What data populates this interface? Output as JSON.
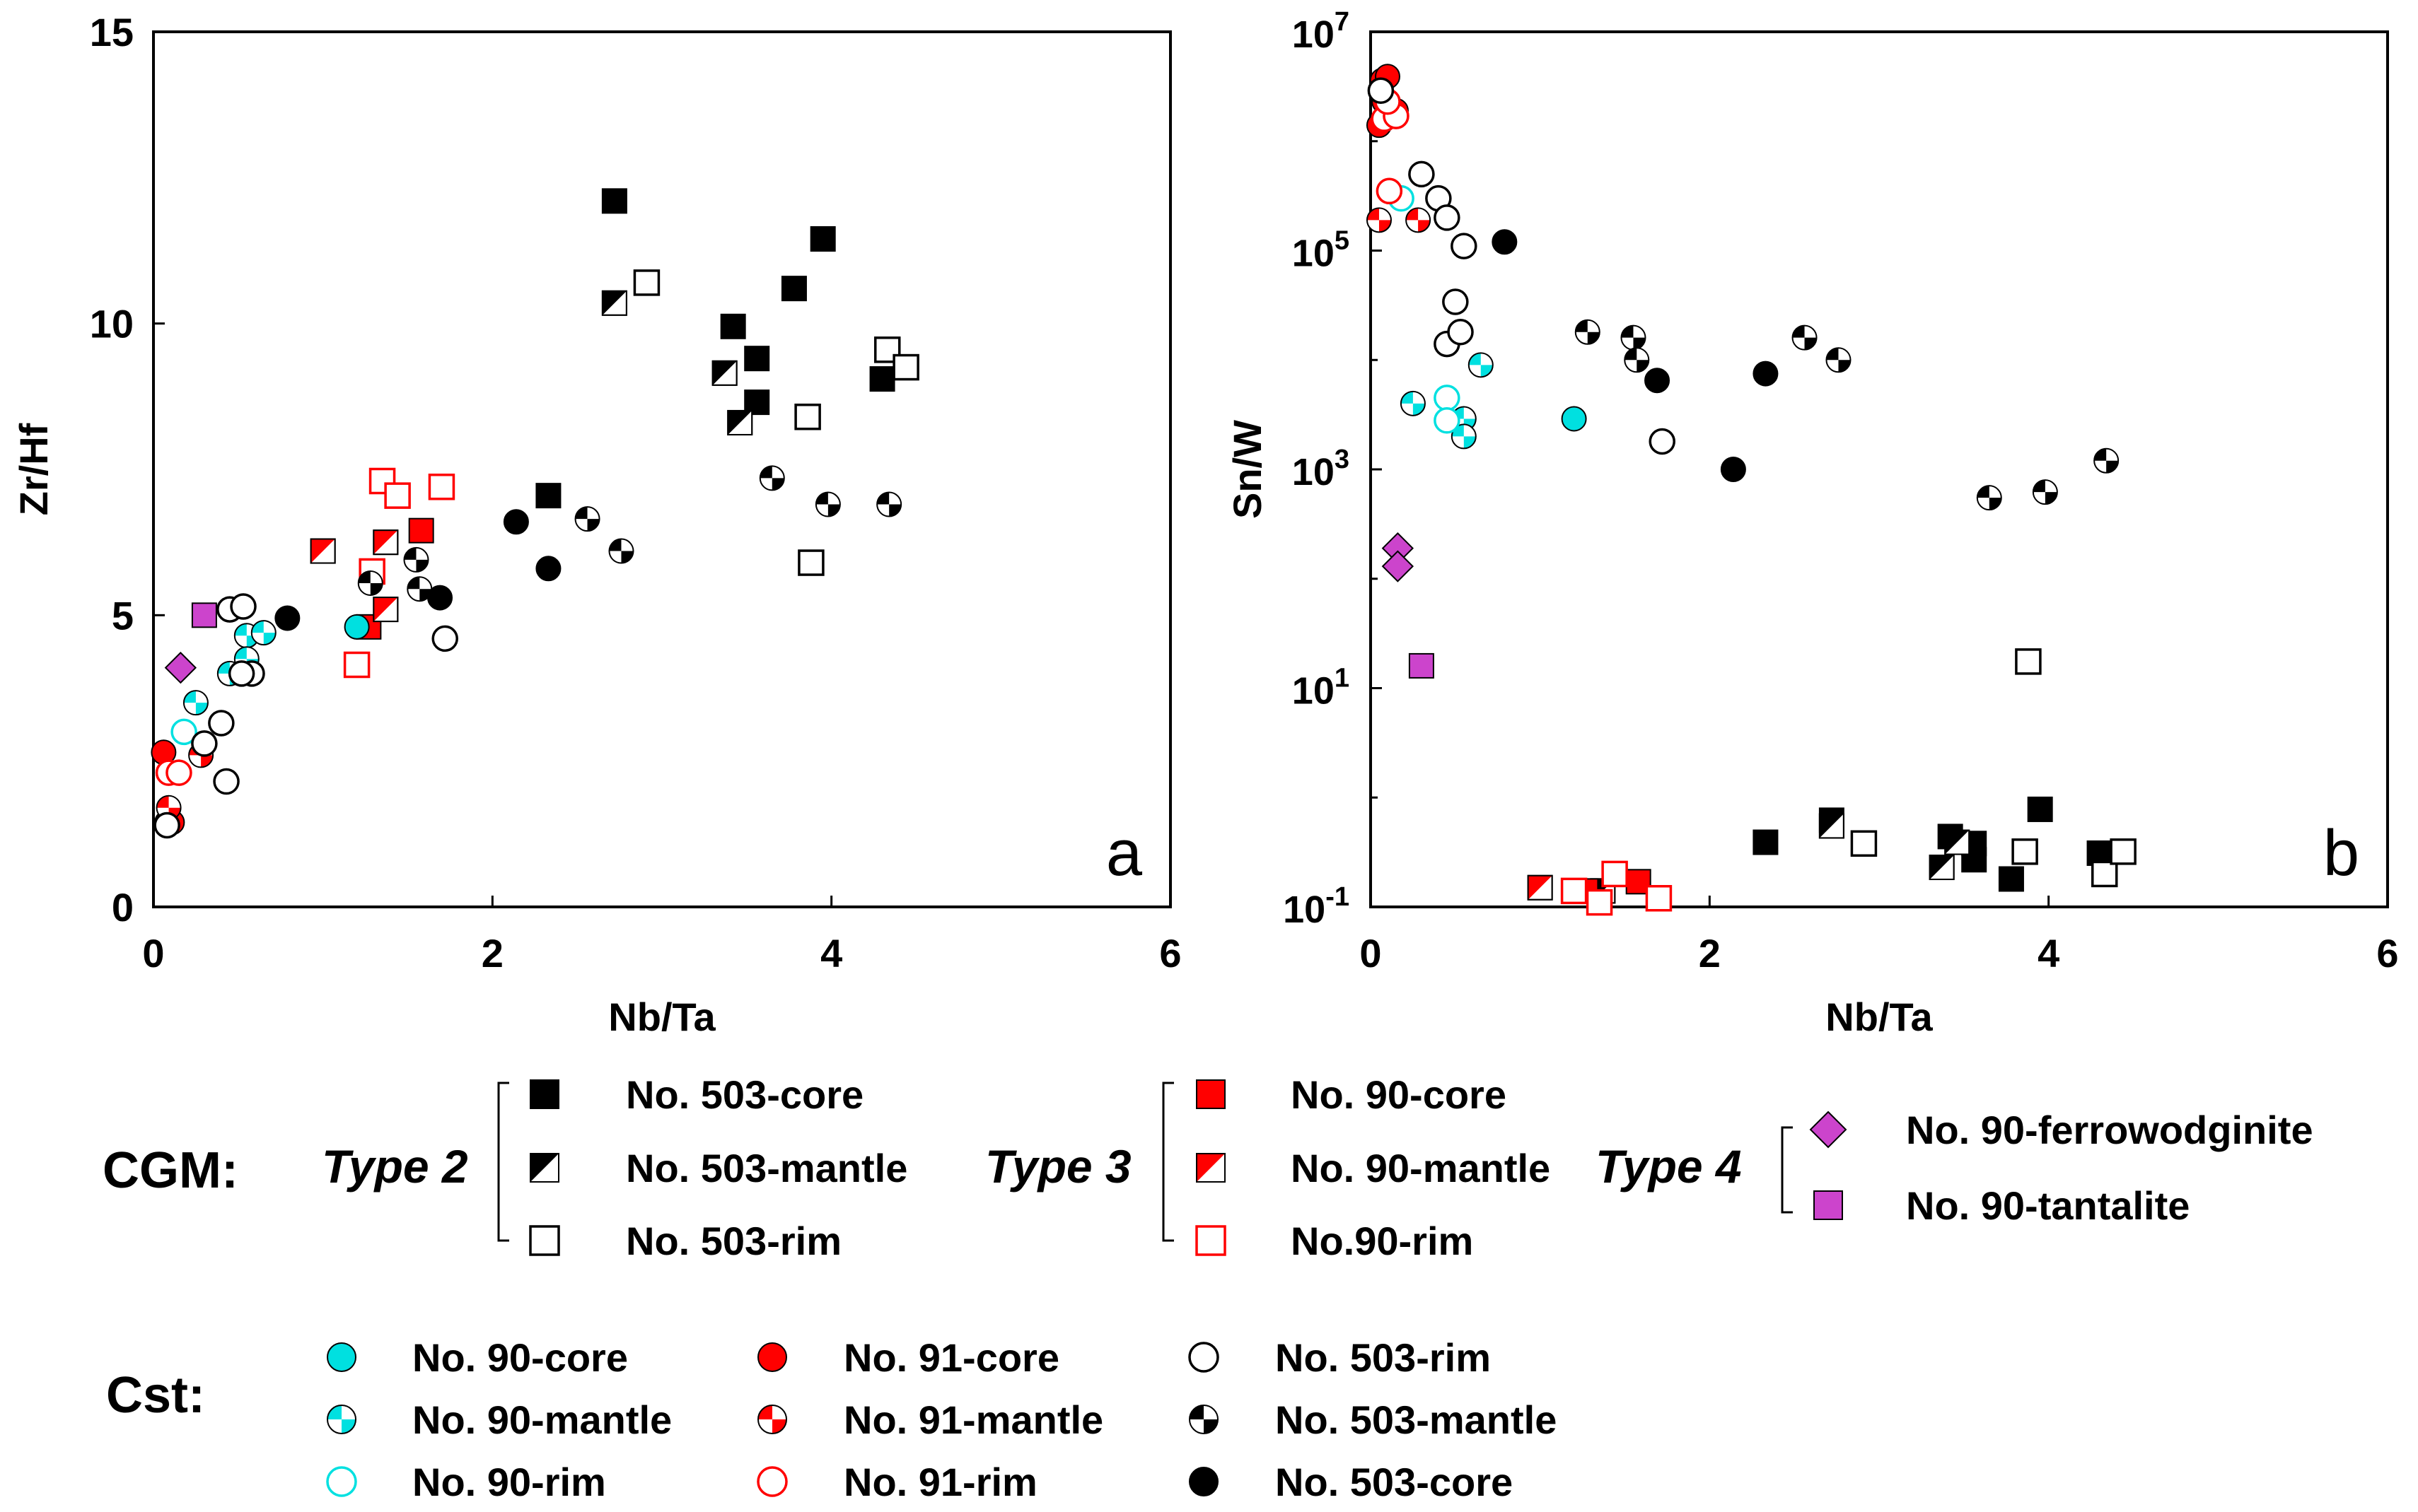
{
  "colors": {
    "black": "#000000",
    "red": "#ff0000",
    "cyan": "#00e0e0",
    "magenta": "#cc44cc"
  },
  "chart_data": [
    {
      "panel": "a",
      "type": "scatter",
      "xlabel": "Nb/Ta",
      "ylabel": "Zr/Hf",
      "xlim": [
        0,
        6
      ],
      "ylim": [
        0,
        15
      ],
      "xticks": [
        "0",
        "2",
        "4",
        "6"
      ],
      "yticks": [
        "0",
        "5",
        "10",
        "15"
      ],
      "series": [
        {
          "key": "cgm503core",
          "points": [
            [
              2.72,
              12.1
            ],
            [
              3.42,
              9.95
            ],
            [
              3.56,
              9.4
            ],
            [
              3.56,
              8.65
            ],
            [
              3.95,
              11.45
            ],
            [
              3.78,
              10.6
            ],
            [
              4.3,
              9.05
            ],
            [
              2.33,
              7.05
            ]
          ]
        },
        {
          "key": "cgm503mantle",
          "points": [
            [
              2.72,
              10.35
            ],
            [
              3.37,
              9.15
            ],
            [
              3.46,
              8.3
            ]
          ]
        },
        {
          "key": "cgm503rim",
          "points": [
            [
              2.91,
              10.7
            ],
            [
              3.86,
              8.4
            ],
            [
              4.33,
              9.55
            ],
            [
              4.44,
              9.25
            ],
            [
              3.88,
              5.9
            ]
          ]
        },
        {
          "key": "cgm90core",
          "points": [
            [
              1.58,
              6.45
            ],
            [
              1.27,
              4.8
            ]
          ]
        },
        {
          "key": "cgm90mantle",
          "points": [
            [
              1.0,
              6.1
            ],
            [
              1.37,
              6.25
            ],
            [
              1.37,
              5.1
            ]
          ]
        },
        {
          "key": "cgm90rim",
          "points": [
            [
              1.35,
              7.3
            ],
            [
              1.44,
              7.05
            ],
            [
              1.7,
              7.2
            ],
            [
              1.29,
              5.75
            ],
            [
              1.2,
              4.15
            ]
          ]
        },
        {
          "key": "ferrowodginite",
          "points": [
            [
              0.16,
              4.1
            ]
          ]
        },
        {
          "key": "tantalite",
          "points": [
            [
              0.3,
              5.0
            ]
          ]
        },
        {
          "key": "cst90core",
          "points": [
            [
              1.2,
              4.8
            ]
          ]
        },
        {
          "key": "cst90mantle",
          "points": [
            [
              0.25,
              3.5
            ],
            [
              0.45,
              4.0
            ],
            [
              0.55,
              4.65
            ],
            [
              0.55,
              4.25
            ],
            [
              0.65,
              4.7
            ]
          ]
        },
        {
          "key": "cst90rim",
          "points": [
            [
              0.18,
              3.0
            ]
          ]
        },
        {
          "key": "cst91core",
          "points": [
            [
              0.06,
              2.65
            ],
            [
              0.08,
              1.45
            ],
            [
              0.11,
              1.45
            ]
          ]
        },
        {
          "key": "cst91mantle",
          "points": [
            [
              0.09,
              1.7
            ],
            [
              0.28,
              2.6
            ]
          ]
        },
        {
          "key": "cst91rim",
          "points": [
            [
              0.09,
              2.3
            ],
            [
              0.15,
              2.3
            ]
          ]
        },
        {
          "key": "cst503rim",
          "points": [
            [
              0.45,
              5.1
            ],
            [
              0.53,
              5.15
            ],
            [
              0.58,
              4.0
            ],
            [
              0.52,
              4.0
            ],
            [
              0.4,
              3.15
            ],
            [
              0.3,
              2.8
            ],
            [
              0.43,
              2.15
            ],
            [
              1.72,
              4.6
            ],
            [
              0.08,
              1.4
            ]
          ]
        },
        {
          "key": "cst503mantle",
          "points": [
            [
              1.28,
              5.55
            ],
            [
              1.55,
              5.95
            ],
            [
              1.57,
              5.45
            ],
            [
              2.56,
              6.65
            ],
            [
              2.76,
              6.1
            ],
            [
              3.65,
              7.35
            ],
            [
              3.98,
              6.9
            ],
            [
              4.34,
              6.9
            ]
          ]
        },
        {
          "key": "cst503core",
          "points": [
            [
              0.79,
              4.95
            ],
            [
              1.69,
              5.3
            ],
            [
              2.14,
              6.6
            ],
            [
              2.33,
              5.8
            ]
          ]
        }
      ]
    },
    {
      "panel": "b",
      "type": "scatter",
      "yscale": "log",
      "xlabel": "Nb/Ta",
      "ylabel": "Sn/W",
      "xlim": [
        0,
        6
      ],
      "ylim": [
        0.1,
        10000000
      ],
      "xticks": [
        "0",
        "2",
        "4",
        "6"
      ],
      "yticks": [
        {
          "base": "10",
          "exp": "7",
          "value": 10000000
        },
        {
          "base": "10",
          "exp": "5",
          "value": 100000
        },
        {
          "base": "10",
          "exp": "3",
          "value": 1000
        },
        {
          "base": "10",
          "exp": "1",
          "value": 10
        },
        {
          "base": "10",
          "exp": "-1",
          "value": 0.1
        }
      ],
      "series": [
        {
          "key": "cgm503core",
          "points": [
            [
              2.33,
              0.39
            ],
            [
              2.72,
              0.62
            ],
            [
              3.95,
              0.78
            ],
            [
              3.42,
              0.44
            ],
            [
              3.56,
              0.38
            ],
            [
              3.56,
              0.27
            ],
            [
              3.78,
              0.18
            ],
            [
              4.3,
              0.31
            ]
          ]
        },
        {
          "key": "cgm503mantle",
          "points": [
            [
              2.72,
              0.55
            ],
            [
              3.37,
              0.23
            ],
            [
              3.46,
              0.39
            ],
            [
              1.37,
              0.14
            ]
          ]
        },
        {
          "key": "cgm503rim",
          "points": [
            [
              2.91,
              0.38
            ],
            [
              3.86,
              0.32
            ],
            [
              4.33,
              0.2
            ],
            [
              4.44,
              0.32
            ],
            [
              3.88,
              17.5
            ]
          ]
        },
        {
          "key": "cgm90core",
          "points": [
            [
              1.58,
              0.17
            ],
            [
              1.27,
              0.14
            ]
          ]
        },
        {
          "key": "cgm90mantle",
          "points": [
            [
              1.0,
              0.15
            ]
          ]
        },
        {
          "key": "cgm90rim",
          "points": [
            [
              1.2,
              0.14
            ],
            [
              1.44,
              0.2
            ],
            [
              1.7,
              0.12
            ],
            [
              1.35,
              0.11
            ]
          ]
        },
        {
          "key": "ferrowodginite",
          "points": [
            [
              0.16,
              190
            ],
            [
              0.16,
              130
            ]
          ]
        },
        {
          "key": "tantalite",
          "points": [
            [
              0.3,
              16
            ]
          ]
        },
        {
          "key": "cst90core",
          "points": [
            [
              1.2,
              2900
            ]
          ]
        },
        {
          "key": "cst90mantle",
          "points": [
            [
              0.25,
              4000
            ],
            [
              0.55,
              2900
            ],
            [
              0.55,
              2000
            ],
            [
              0.65,
              9000
            ]
          ]
        },
        {
          "key": "cst90rim",
          "points": [
            [
              0.18,
              300000
            ],
            [
              0.45,
              4500
            ],
            [
              0.45,
              2800
            ]
          ]
        },
        {
          "key": "cst91core",
          "points": [
            [
              0.07,
              3600000
            ],
            [
              0.1,
              3900000
            ],
            [
              0.05,
              1400000
            ],
            [
              0.15,
              1900000
            ],
            [
              0.08,
              2300000
            ]
          ]
        },
        {
          "key": "cst91mantle",
          "points": [
            [
              0.05,
              190000
            ],
            [
              0.28,
              190000
            ]
          ]
        },
        {
          "key": "cst91rim",
          "points": [
            [
              0.08,
              1600000
            ],
            [
              0.15,
              1700000
            ],
            [
              0.1,
              2300000
            ],
            [
              0.11,
              350000
            ]
          ]
        },
        {
          "key": "cst503rim",
          "points": [
            [
              0.06,
              2900000
            ],
            [
              0.3,
              500000
            ],
            [
              0.4,
              300000
            ],
            [
              0.45,
              200000
            ],
            [
              0.55,
              110000
            ],
            [
              0.5,
              34000
            ],
            [
              0.45,
              14000
            ],
            [
              0.53,
              18000
            ],
            [
              1.72,
              1800
            ]
          ]
        },
        {
          "key": "cst503mantle",
          "points": [
            [
              1.28,
              18000
            ],
            [
              1.55,
              16000
            ],
            [
              1.57,
              10000
            ],
            [
              2.56,
              16000
            ],
            [
              2.76,
              10000
            ],
            [
              3.65,
              550
            ],
            [
              3.98,
              620
            ],
            [
              4.34,
              1200
            ]
          ]
        },
        {
          "key": "cst503core",
          "points": [
            [
              0.79,
              120000
            ],
            [
              1.69,
              6500
            ],
            [
              2.14,
              1000
            ],
            [
              2.33,
              7500
            ]
          ]
        }
      ]
    }
  ],
  "panel_letters": [
    "a",
    "b"
  ],
  "legend": {
    "cgm_label": "CGM:",
    "cst_label": "Cst:",
    "type2": "Type 2",
    "type3": "Type 3",
    "type4": "Type 4",
    "entries": {
      "cgm503core": "No. 503-core",
      "cgm503mantle": "No. 503-mantle",
      "cgm503rim": "No. 503-rim",
      "cgm90core": "No. 90-core",
      "cgm90mantle": "No. 90-mantle",
      "cgm90rim": "No.90-rim",
      "ferrowodginite": "No. 90-ferrowodginite",
      "tantalite": "No. 90-tantalite",
      "cst90core": "No. 90-core",
      "cst90mantle": "No. 90-mantle",
      "cst90rim": "No. 90-rim",
      "cst91core": "No. 91-core",
      "cst91mantle": "No. 91-mantle",
      "cst91rim": "No. 91-rim",
      "cst503rim": "No. 503-rim",
      "cst503mantle": "No. 503-mantle",
      "cst503core": "No. 503-core"
    }
  }
}
